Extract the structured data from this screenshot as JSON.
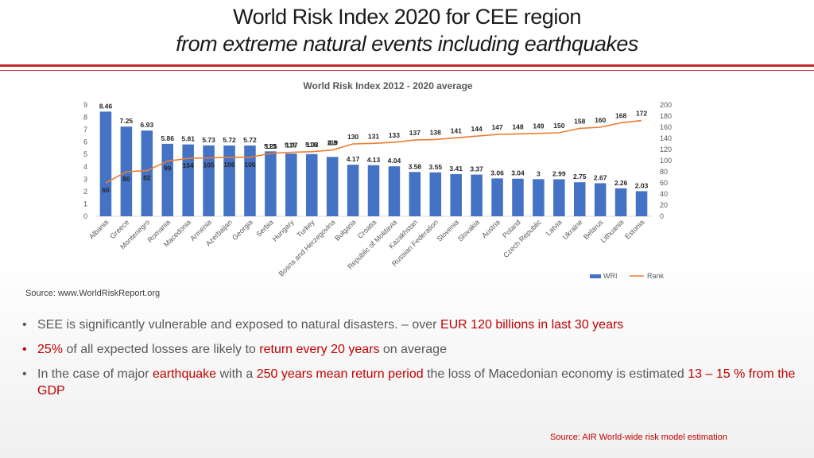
{
  "header": {
    "title_line1": "World Risk Index 2020 for CEE region",
    "title_line2": "from extreme natural events including earthquakes"
  },
  "chart_data": {
    "type": "bar",
    "title": "World Risk Index 2012 - 2020 average",
    "categories": [
      "Albania",
      "Greece",
      "Montenegro",
      "Romania",
      "Macedonia",
      "Armenia",
      "Azerbaijan",
      "Georgia",
      "Serbia",
      "Hungary",
      "Turkey",
      "Bosna and Herzegovina",
      "Bulgaria",
      "Croatia",
      "Republic of Moldavia",
      "Kazakhstan",
      "Russian Federation",
      "Slovenia",
      "Slovakia",
      "Austria",
      "Poland",
      "Czech Republic",
      "Latvia",
      "Ukraine",
      "Belarus",
      "Lithuania",
      "Estonia"
    ],
    "series": [
      {
        "name": "WRI",
        "type": "bar",
        "axis": "left",
        "color": "#4472c4",
        "values": [
          8.46,
          7.25,
          6.93,
          5.86,
          5.81,
          5.73,
          5.72,
          5.72,
          5.25,
          5.07,
          5.03,
          4.8,
          4.17,
          4.13,
          4.04,
          3.58,
          3.55,
          3.41,
          3.37,
          3.06,
          3.04,
          3,
          2.99,
          2.75,
          2.67,
          2.26,
          2.03
        ]
      },
      {
        "name": "Rank",
        "type": "line",
        "axis": "right",
        "color": "#ed7d31",
        "values": [
          60,
          80,
          82,
          99,
          104,
          105,
          106,
          106,
          113,
          115,
          116,
          119,
          130,
          131,
          133,
          137,
          138,
          141,
          144,
          147,
          148,
          149,
          150,
          158,
          160,
          168,
          172
        ]
      }
    ],
    "left_axis": {
      "min": 0,
      "max": 9,
      "ticks": [
        "0",
        "1",
        "2",
        "3",
        "4",
        "5",
        "6",
        "7",
        "8",
        "9"
      ]
    },
    "right_axis": {
      "min": 0,
      "max": 200,
      "ticks": [
        "0",
        "20",
        "40",
        "60",
        "80",
        "100",
        "120",
        "140",
        "160",
        "180",
        "200"
      ]
    },
    "grid": false,
    "legend": {
      "position": "bottom-right",
      "items": [
        "WRI",
        "Rank"
      ]
    }
  },
  "source_top": "Source: www.WorldRiskReport.org",
  "bullets": [
    {
      "parts": [
        {
          "text": "SEE is significantly vulnerable and exposed to natural disasters. – over  ",
          "hl": false
        },
        {
          "text": "EUR 120 billions in last 30 years",
          "hl": true
        }
      ]
    },
    {
      "parts": [
        {
          "text": "25%",
          "hl": true
        },
        {
          "text": " of all expected losses are likely to ",
          "hl": false
        },
        {
          "text": "return every 20 years",
          "hl": true
        },
        {
          "text": " on average",
          "hl": false
        }
      ]
    },
    {
      "parts": [
        {
          "text": "In the case of major ",
          "hl": false
        },
        {
          "text": "earthquake",
          "hl": true
        },
        {
          "text": " with a ",
          "hl": false
        },
        {
          "text": "250 years mean return period",
          "hl": true
        },
        {
          "text": " the loss of Macedonian economy is estimated ",
          "hl": false
        },
        {
          "text": "13 – 15 % from the GDP",
          "hl": true
        }
      ]
    }
  ],
  "source_bottom": "Source: AIR World-wide risk model estimation"
}
